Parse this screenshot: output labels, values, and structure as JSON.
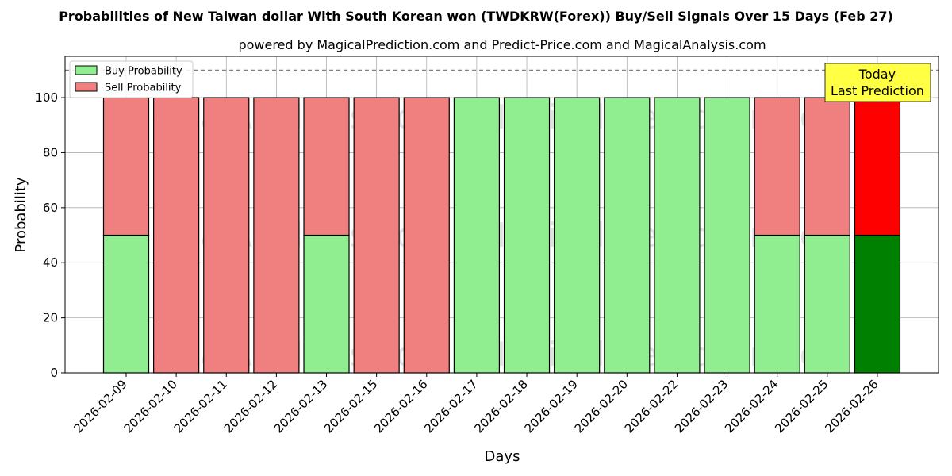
{
  "chart_data": {
    "type": "bar",
    "stacked": true,
    "title": "Probabilities of New Taiwan dollar With South Korean won (TWDKRW(Forex)) Buy/Sell Signals Over 15 Days (Feb 27)",
    "subtitle": "powered by MagicalPrediction.com and Predict-Price.com and MagicalAnalysis.com",
    "xlabel": "Days",
    "ylabel": "Probability",
    "ylim": [
      0,
      115
    ],
    "yticks": [
      0,
      20,
      40,
      60,
      80,
      100
    ],
    "reference_line": 110,
    "grid": true,
    "legend_position": "top-left",
    "categories": [
      "2026-02-09",
      "2026-02-10",
      "2026-02-11",
      "2026-02-12",
      "2026-02-13",
      "2026-02-15",
      "2026-02-16",
      "2026-02-17",
      "2026-02-18",
      "2026-02-19",
      "2026-02-20",
      "2026-02-22",
      "2026-02-23",
      "2026-02-24",
      "2026-02-25",
      "2026-02-26"
    ],
    "series": [
      {
        "name": "Buy Probability",
        "color": "#90ee90",
        "highlight_color": "#008000",
        "values": [
          50,
          0,
          0,
          0,
          50,
          0,
          0,
          100,
          100,
          100,
          100,
          100,
          100,
          50,
          50,
          50
        ]
      },
      {
        "name": "Sell Probability",
        "color": "#f08080",
        "highlight_color": "#ff0000",
        "values": [
          50,
          100,
          100,
          100,
          50,
          100,
          100,
          0,
          0,
          0,
          0,
          0,
          0,
          50,
          50,
          50
        ]
      }
    ],
    "highlight_index": 15,
    "annotation": {
      "line1": "Today",
      "line2": "Last Prediction",
      "bg_color": "#ffff44"
    },
    "watermarks": [
      "MagicalAnalysis.com",
      "MagicalPrediction.com"
    ]
  }
}
